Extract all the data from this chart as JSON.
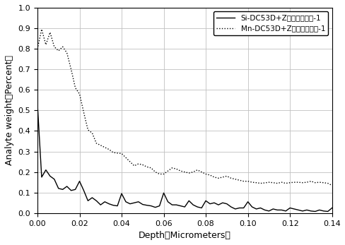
{
  "title": "",
  "xlabel": "Depth（Micrometers）",
  "ylabel": "Analyte weight（Percent）",
  "xlim": [
    0,
    0.14
  ],
  "ylim": [
    0.0,
    1.0
  ],
  "xticks": [
    0.0,
    0.02,
    0.04,
    0.06,
    0.08,
    0.1,
    0.12,
    0.14
  ],
  "yticks": [
    0.0,
    0.1,
    0.2,
    0.3,
    0.4,
    0.5,
    0.6,
    0.7,
    0.8,
    0.9,
    1.0
  ],
  "legend_si": "Si-DC53D+Z（去掉涂层）-1",
  "legend_mn": "Mn-DC53D+Z（去掉涂层）-1",
  "si_x": [
    0.0,
    0.002,
    0.004,
    0.006,
    0.008,
    0.01,
    0.012,
    0.014,
    0.016,
    0.018,
    0.02,
    0.022,
    0.024,
    0.026,
    0.028,
    0.03,
    0.032,
    0.034,
    0.036,
    0.038,
    0.04,
    0.042,
    0.044,
    0.046,
    0.048,
    0.05,
    0.052,
    0.054,
    0.056,
    0.058,
    0.06,
    0.062,
    0.064,
    0.066,
    0.068,
    0.07,
    0.072,
    0.074,
    0.076,
    0.078,
    0.08,
    0.082,
    0.084,
    0.086,
    0.088,
    0.09,
    0.092,
    0.094,
    0.096,
    0.098,
    0.1,
    0.102,
    0.104,
    0.106,
    0.108,
    0.11,
    0.112,
    0.114,
    0.116,
    0.118,
    0.12,
    0.122,
    0.124,
    0.126,
    0.128,
    0.13,
    0.132,
    0.134,
    0.136,
    0.138,
    0.14
  ],
  "si_y": [
    0.53,
    0.175,
    0.21,
    0.18,
    0.165,
    0.12,
    0.115,
    0.13,
    0.11,
    0.115,
    0.155,
    0.11,
    0.06,
    0.075,
    0.06,
    0.04,
    0.055,
    0.045,
    0.038,
    0.035,
    0.095,
    0.055,
    0.045,
    0.05,
    0.055,
    0.042,
    0.038,
    0.035,
    0.028,
    0.035,
    0.098,
    0.055,
    0.04,
    0.04,
    0.035,
    0.03,
    0.06,
    0.04,
    0.03,
    0.025,
    0.06,
    0.045,
    0.05,
    0.04,
    0.05,
    0.045,
    0.03,
    0.02,
    0.025,
    0.025,
    0.055,
    0.03,
    0.02,
    0.025,
    0.015,
    0.01,
    0.02,
    0.015,
    0.015,
    0.01,
    0.025,
    0.02,
    0.015,
    0.01,
    0.015,
    0.01,
    0.008,
    0.015,
    0.01,
    0.008,
    0.025
  ],
  "mn_x": [
    0.0,
    0.002,
    0.004,
    0.006,
    0.008,
    0.01,
    0.012,
    0.014,
    0.016,
    0.018,
    0.02,
    0.022,
    0.024,
    0.026,
    0.028,
    0.03,
    0.032,
    0.034,
    0.036,
    0.038,
    0.04,
    0.042,
    0.044,
    0.046,
    0.048,
    0.05,
    0.052,
    0.054,
    0.056,
    0.058,
    0.06,
    0.062,
    0.064,
    0.066,
    0.068,
    0.07,
    0.072,
    0.074,
    0.076,
    0.078,
    0.08,
    0.082,
    0.084,
    0.086,
    0.088,
    0.09,
    0.092,
    0.094,
    0.096,
    0.098,
    0.1,
    0.102,
    0.104,
    0.106,
    0.108,
    0.11,
    0.112,
    0.114,
    0.116,
    0.118,
    0.12,
    0.122,
    0.124,
    0.126,
    0.128,
    0.13,
    0.132,
    0.134,
    0.136,
    0.138,
    0.14
  ],
  "mn_y": [
    0.8,
    0.895,
    0.82,
    0.88,
    0.81,
    0.79,
    0.81,
    0.78,
    0.7,
    0.61,
    0.58,
    0.49,
    0.405,
    0.39,
    0.34,
    0.33,
    0.32,
    0.31,
    0.295,
    0.292,
    0.29,
    0.27,
    0.25,
    0.23,
    0.24,
    0.235,
    0.225,
    0.22,
    0.2,
    0.19,
    0.19,
    0.205,
    0.22,
    0.215,
    0.205,
    0.2,
    0.195,
    0.2,
    0.21,
    0.2,
    0.19,
    0.185,
    0.175,
    0.17,
    0.175,
    0.18,
    0.17,
    0.165,
    0.16,
    0.155,
    0.155,
    0.15,
    0.148,
    0.145,
    0.147,
    0.15,
    0.148,
    0.145,
    0.15,
    0.145,
    0.148,
    0.15,
    0.15,
    0.148,
    0.15,
    0.155,
    0.148,
    0.15,
    0.148,
    0.145,
    0.135
  ],
  "si_color": "#000000",
  "mn_color": "#000000",
  "grid_color": "#c0c0c0",
  "background_color": "#ffffff"
}
